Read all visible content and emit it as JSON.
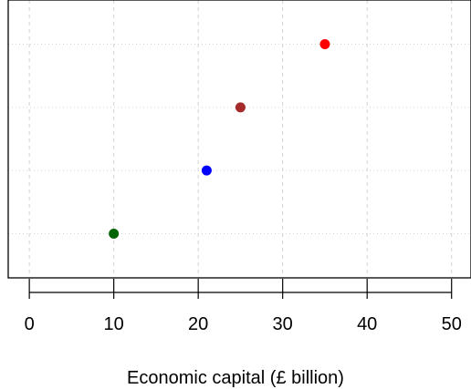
{
  "chart_data": {
    "type": "scatter",
    "title": "",
    "xlabel": "Economic capital  (£ billion)",
    "ylabel": "",
    "xlim": [
      -2.5,
      52.3
    ],
    "x_ticks": [
      0,
      10,
      20,
      30,
      40,
      50
    ],
    "x_tick_labels": [
      "0",
      "10",
      "20",
      "30",
      "40",
      "50"
    ],
    "ylim": [
      0.3,
      4.7
    ],
    "y_tick_labels_shown": false,
    "grid": true,
    "grid_style": "vertical dashed, horizontal dotted",
    "legend": "none",
    "series": [
      {
        "points": [
          {
            "x": 10,
            "y": 1,
            "color": "#006400"
          },
          {
            "x": 21,
            "y": 2,
            "color": "#0000ff"
          },
          {
            "x": 25,
            "y": 3,
            "color": "#a52a2a"
          },
          {
            "x": 35,
            "y": 4,
            "color": "#ff0000"
          }
        ]
      }
    ]
  }
}
